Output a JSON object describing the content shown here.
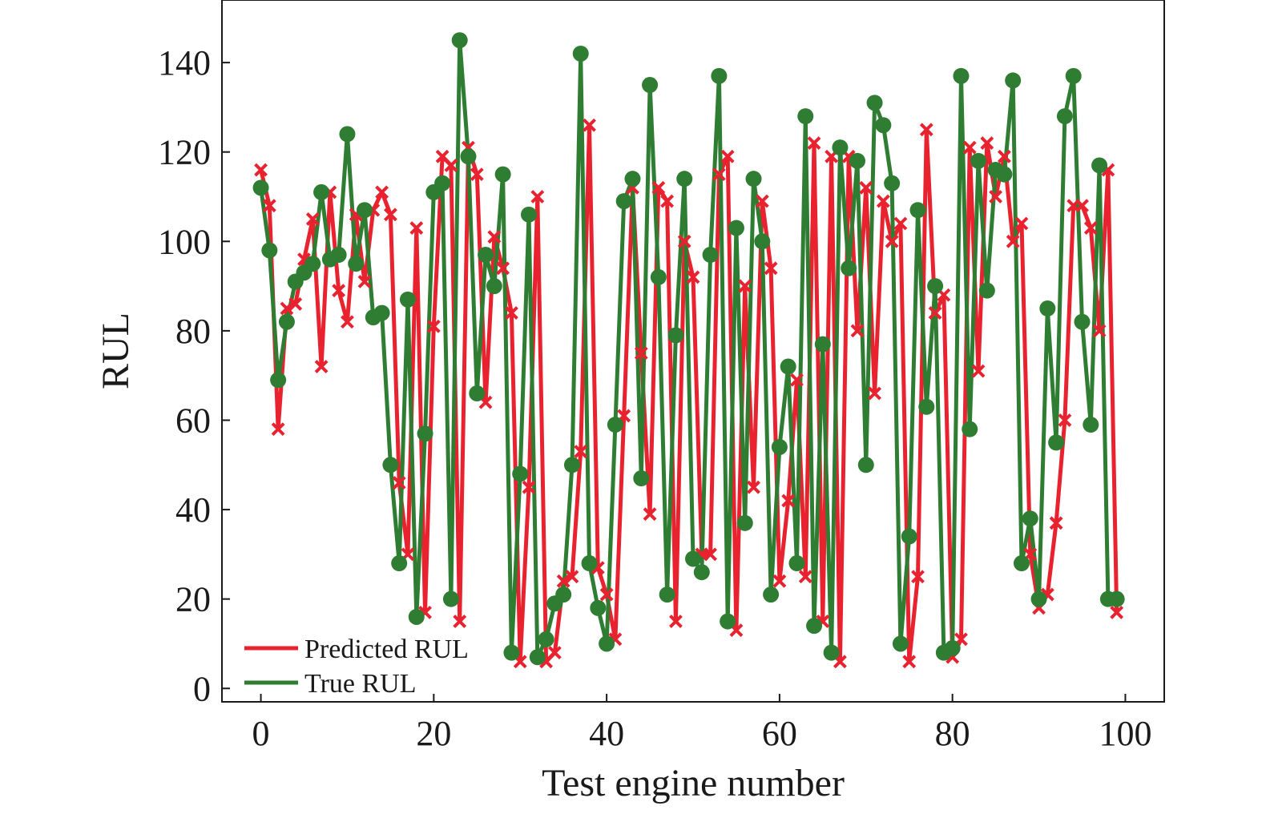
{
  "chart_data": {
    "type": "line",
    "xlabel": "Test engine number",
    "ylabel": "RUL",
    "xlim": [
      -4.5,
      104.5
    ],
    "ylim": [
      -3,
      154
    ],
    "xticks": [
      0,
      20,
      40,
      60,
      80,
      100
    ],
    "yticks": [
      0,
      20,
      40,
      60,
      80,
      100,
      120,
      140
    ],
    "legend_position": "bottom-left",
    "grid": false,
    "series": [
      {
        "name": "Predicted RUL",
        "color": "#e8232f",
        "marker": "x",
        "x": [
          0,
          1,
          2,
          3,
          4,
          5,
          6,
          7,
          8,
          9,
          10,
          11,
          12,
          13,
          14,
          15,
          16,
          17,
          18,
          19,
          20,
          21,
          22,
          23,
          24,
          25,
          26,
          27,
          28,
          29,
          30,
          31,
          32,
          33,
          34,
          35,
          36,
          37,
          38,
          39,
          40,
          41,
          42,
          43,
          44,
          45,
          46,
          47,
          48,
          49,
          50,
          51,
          52,
          53,
          54,
          55,
          56,
          57,
          58,
          59,
          60,
          61,
          62,
          63,
          64,
          65,
          66,
          67,
          68,
          69,
          70,
          71,
          72,
          73,
          74,
          75,
          76,
          77,
          78,
          79,
          80,
          81,
          82,
          83,
          84,
          85,
          86,
          87,
          88,
          89,
          90,
          91,
          92,
          93,
          94,
          95,
          96,
          97,
          98,
          99
        ],
        "values": [
          116,
          108,
          58,
          85,
          86,
          96,
          105,
          72,
          111,
          89,
          82,
          106,
          91,
          107,
          111,
          106,
          46,
          30,
          103,
          17,
          81,
          119,
          117,
          15,
          121,
          115,
          64,
          101,
          94,
          84,
          6,
          45,
          110,
          6,
          8,
          24,
          25,
          53,
          126,
          27,
          21,
          11,
          61,
          112,
          75,
          39,
          112,
          109,
          15,
          100,
          92,
          30,
          30,
          115,
          119,
          13,
          90,
          45,
          109,
          94,
          24,
          42,
          69,
          25,
          122,
          15,
          119,
          6,
          119,
          80,
          112,
          66,
          109,
          100,
          104,
          6,
          25,
          125,
          84,
          88,
          7,
          11,
          121,
          71,
          122,
          110,
          119,
          100,
          104,
          30,
          18,
          21,
          37,
          60,
          108,
          108,
          103,
          80,
          116,
          17
        ]
      },
      {
        "name": "True RUL",
        "color": "#2f7d32",
        "marker": "circle",
        "x": [
          0,
          1,
          2,
          3,
          4,
          5,
          6,
          7,
          8,
          9,
          10,
          11,
          12,
          13,
          14,
          15,
          16,
          17,
          18,
          19,
          20,
          21,
          22,
          23,
          24,
          25,
          26,
          27,
          28,
          29,
          30,
          31,
          32,
          33,
          34,
          35,
          36,
          37,
          38,
          39,
          40,
          41,
          42,
          43,
          44,
          45,
          46,
          47,
          48,
          49,
          50,
          51,
          52,
          53,
          54,
          55,
          56,
          57,
          58,
          59,
          60,
          61,
          62,
          63,
          64,
          65,
          66,
          67,
          68,
          69,
          70,
          71,
          72,
          73,
          74,
          75,
          76,
          77,
          78,
          79,
          80,
          81,
          82,
          83,
          84,
          85,
          86,
          87,
          88,
          89,
          90,
          91,
          92,
          93,
          94,
          95,
          96,
          97,
          98,
          99
        ],
        "values": [
          112,
          98,
          69,
          82,
          91,
          93,
          95,
          111,
          96,
          97,
          124,
          95,
          107,
          83,
          84,
          50,
          28,
          87,
          16,
          57,
          111,
          113,
          20,
          145,
          119,
          66,
          97,
          90,
          115,
          8,
          48,
          106,
          7,
          11,
          19,
          21,
          50,
          142,
          28,
          18,
          10,
          59,
          109,
          114,
          47,
          135,
          92,
          21,
          79,
          114,
          29,
          26,
          97,
          137,
          15,
          103,
          37,
          114,
          100,
          21,
          54,
          72,
          28,
          128,
          14,
          77,
          8,
          121,
          94,
          118,
          50,
          131,
          126,
          113,
          10,
          34,
          107,
          63,
          90,
          8,
          9,
          137,
          58,
          118,
          89,
          116,
          115,
          136,
          28,
          38,
          20,
          85,
          55,
          128,
          137,
          82,
          59,
          117,
          20,
          20
        ]
      }
    ]
  }
}
